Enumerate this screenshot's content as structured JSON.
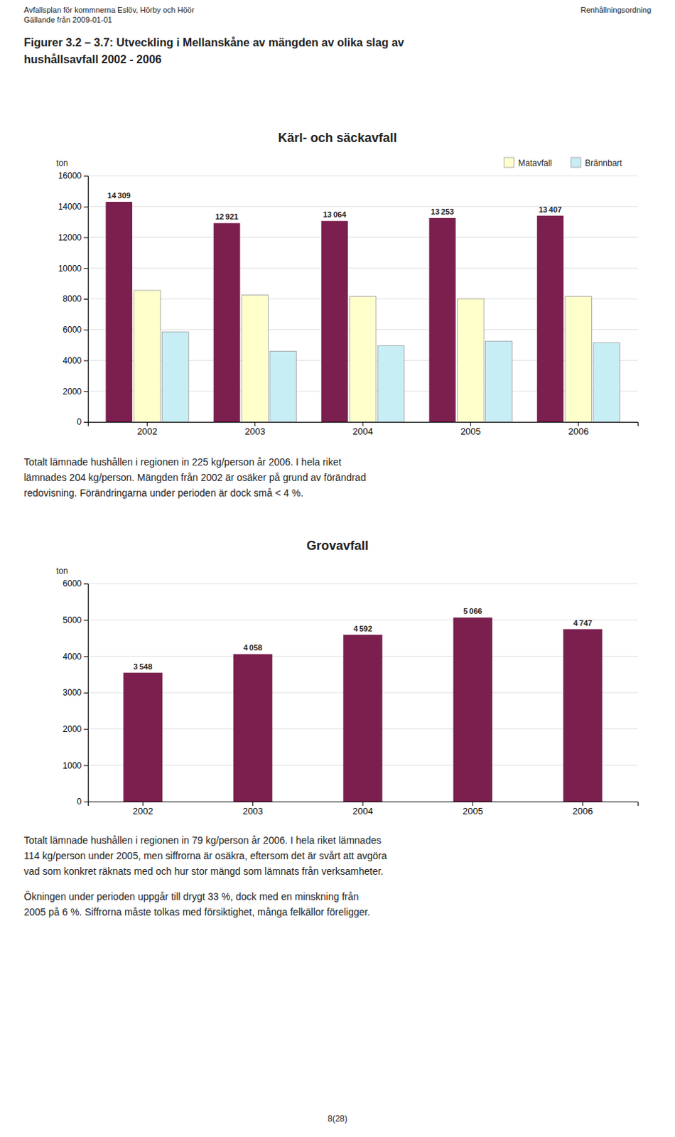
{
  "header_left": "Avfallsplan  för kommnerna Eslöv, Hörby och Höör\nGällande från 2009-01-01",
  "header_right": "Renhållningsordning",
  "title": "Figurer 3.2 – 3.7:   Utveckling i Mellanskåne av mängden av olika slag av\nhushållsavfall 2002 - 2006",
  "footer": "8(28)",
  "chart_data": [
    {
      "type": "bar",
      "title": "Kärl- och säckavfall",
      "ylabel": "ton",
      "categories": [
        "2002",
        "2003",
        "2004",
        "2005",
        "2006"
      ],
      "series": [
        {
          "color": "#7B1F4E",
          "values": [
            14309,
            12921,
            13064,
            13253,
            13407
          ],
          "value_labels": [
            "14 309",
            "12 921",
            "13 064",
            "13 253",
            "13 407"
          ]
        },
        {
          "name": "Matavfall",
          "color": "#FFFFCC",
          "values": [
            8550,
            8250,
            8150,
            8000,
            8150
          ]
        },
        {
          "name": "Brännbart",
          "color": "#C8EEF5",
          "values": [
            5850,
            4600,
            4950,
            5250,
            5150
          ]
        }
      ],
      "ylim": [
        0,
        16000
      ],
      "yticks": [
        0,
        2000,
        4000,
        6000,
        8000,
        10000,
        12000,
        14000,
        16000
      ],
      "grid": true,
      "legend": "top-right",
      "data_labels": true,
      "annotations": [
        "Totalt lämnade hushållen i regionen in 225 kg/person år 2006. I hela riket\nlämnades 204 kg/person. Mängden från 2002 är osäker på grund av förändrad\nredovisning. Förändringarna under perioden är dock små < 4 %."
      ]
    },
    {
      "type": "bar",
      "title": "Grovavfall",
      "ylabel": "ton",
      "categories": [
        "2002",
        "2003",
        "2004",
        "2005",
        "2006"
      ],
      "values": [
        3548,
        4058,
        4592,
        5066,
        4747
      ],
      "value_labels": [
        "3 548",
        "4 058",
        "4 592",
        "5 066",
        "4 747"
      ],
      "color": "#7B1F4E",
      "ylim": [
        0,
        6000
      ],
      "yticks": [
        0,
        1000,
        2000,
        3000,
        4000,
        5000,
        6000
      ],
      "grid": true,
      "data_labels": true,
      "annotations": [
        "Totalt lämnade hushållen i regionen in 79 kg/person år 2006. I hela riket lämnades\n114 kg/person under 2005, men siffrorna är osäkra, eftersom det är svårt att avgöra\nvad som konkret räknats med och hur stor mängd som lämnats från verksamheter.",
        "Ökningen under perioden uppgår till drygt 33 %, dock med en minskning från\n2005 på 6 %. Siffrorna måste tolkas med försiktighet, många felkällor föreligger."
      ]
    }
  ]
}
